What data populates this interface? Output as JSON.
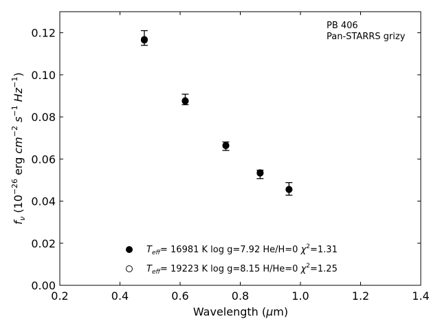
{
  "chart_data": {
    "type": "scatter",
    "xlabel_main": "Wavelength (",
    "xlabel_mu": "μ",
    "xlabel_unit": "m)",
    "ylabel_f": "f",
    "ylabel_nu": "ν",
    "ylabel_open": " (10",
    "ylabel_exp1": "−26",
    "ylabel_erg": " erg ",
    "ylabel_cm": "cm",
    "ylabel_exp2": "−2",
    "ylabel_s": " s",
    "ylabel_exp3": "−1",
    "ylabel_hz": " Hz",
    "ylabel_exp4": "−1",
    "ylabel_close": ")",
    "xlim": [
      0.2,
      1.4
    ],
    "ylim": [
      0.0,
      0.13
    ],
    "x_ticks": [
      0.2,
      0.4,
      0.6,
      0.8,
      1.0,
      1.2,
      1.4
    ],
    "x_tick_labels": [
      "0.2",
      "0.4",
      "0.6",
      "0.8",
      "1.0",
      "1.2",
      "1.4"
    ],
    "y_ticks": [
      0.0,
      0.02,
      0.04,
      0.06,
      0.08,
      0.1,
      0.12
    ],
    "y_tick_labels": [
      "0.00",
      "0.02",
      "0.04",
      "0.06",
      "0.08",
      "0.10",
      "0.12"
    ],
    "annotation_line1": "PB 406",
    "annotation_line2": "Pan-STARRS grizy",
    "observed": {
      "x": [
        0.481,
        0.617,
        0.752,
        0.866,
        0.962
      ],
      "y": [
        0.1175,
        0.0883,
        0.0661,
        0.0527,
        0.0458
      ],
      "yerr": [
        0.0035,
        0.0025,
        0.002,
        0.002,
        0.003
      ]
    },
    "models": [
      {
        "marker": "filled",
        "label_T": "T",
        "label_eff": "eff",
        "label_rest": "= 16981 K  log g=7.92  He/H=0  ",
        "label_chi": "χ",
        "label_sq": "2",
        "label_chival": "=1.31",
        "x": [
          0.481,
          0.617,
          0.752,
          0.866,
          0.962
        ],
        "y": [
          0.1165,
          0.0875,
          0.0665,
          0.0535,
          0.0455
        ]
      },
      {
        "marker": "open",
        "label_T": "T",
        "label_eff": "eff",
        "label_rest": "= 19223 K  log g=8.15  H/He=0  ",
        "label_chi": "χ",
        "label_sq": "2",
        "label_chival": "=1.25",
        "x": [
          0.481,
          0.617,
          0.752,
          0.866,
          0.962
        ],
        "y": [
          0.1168,
          0.0877,
          0.0663,
          0.0533,
          0.0456
        ]
      }
    ],
    "legend_placement": "lower-center",
    "grid": false
  }
}
